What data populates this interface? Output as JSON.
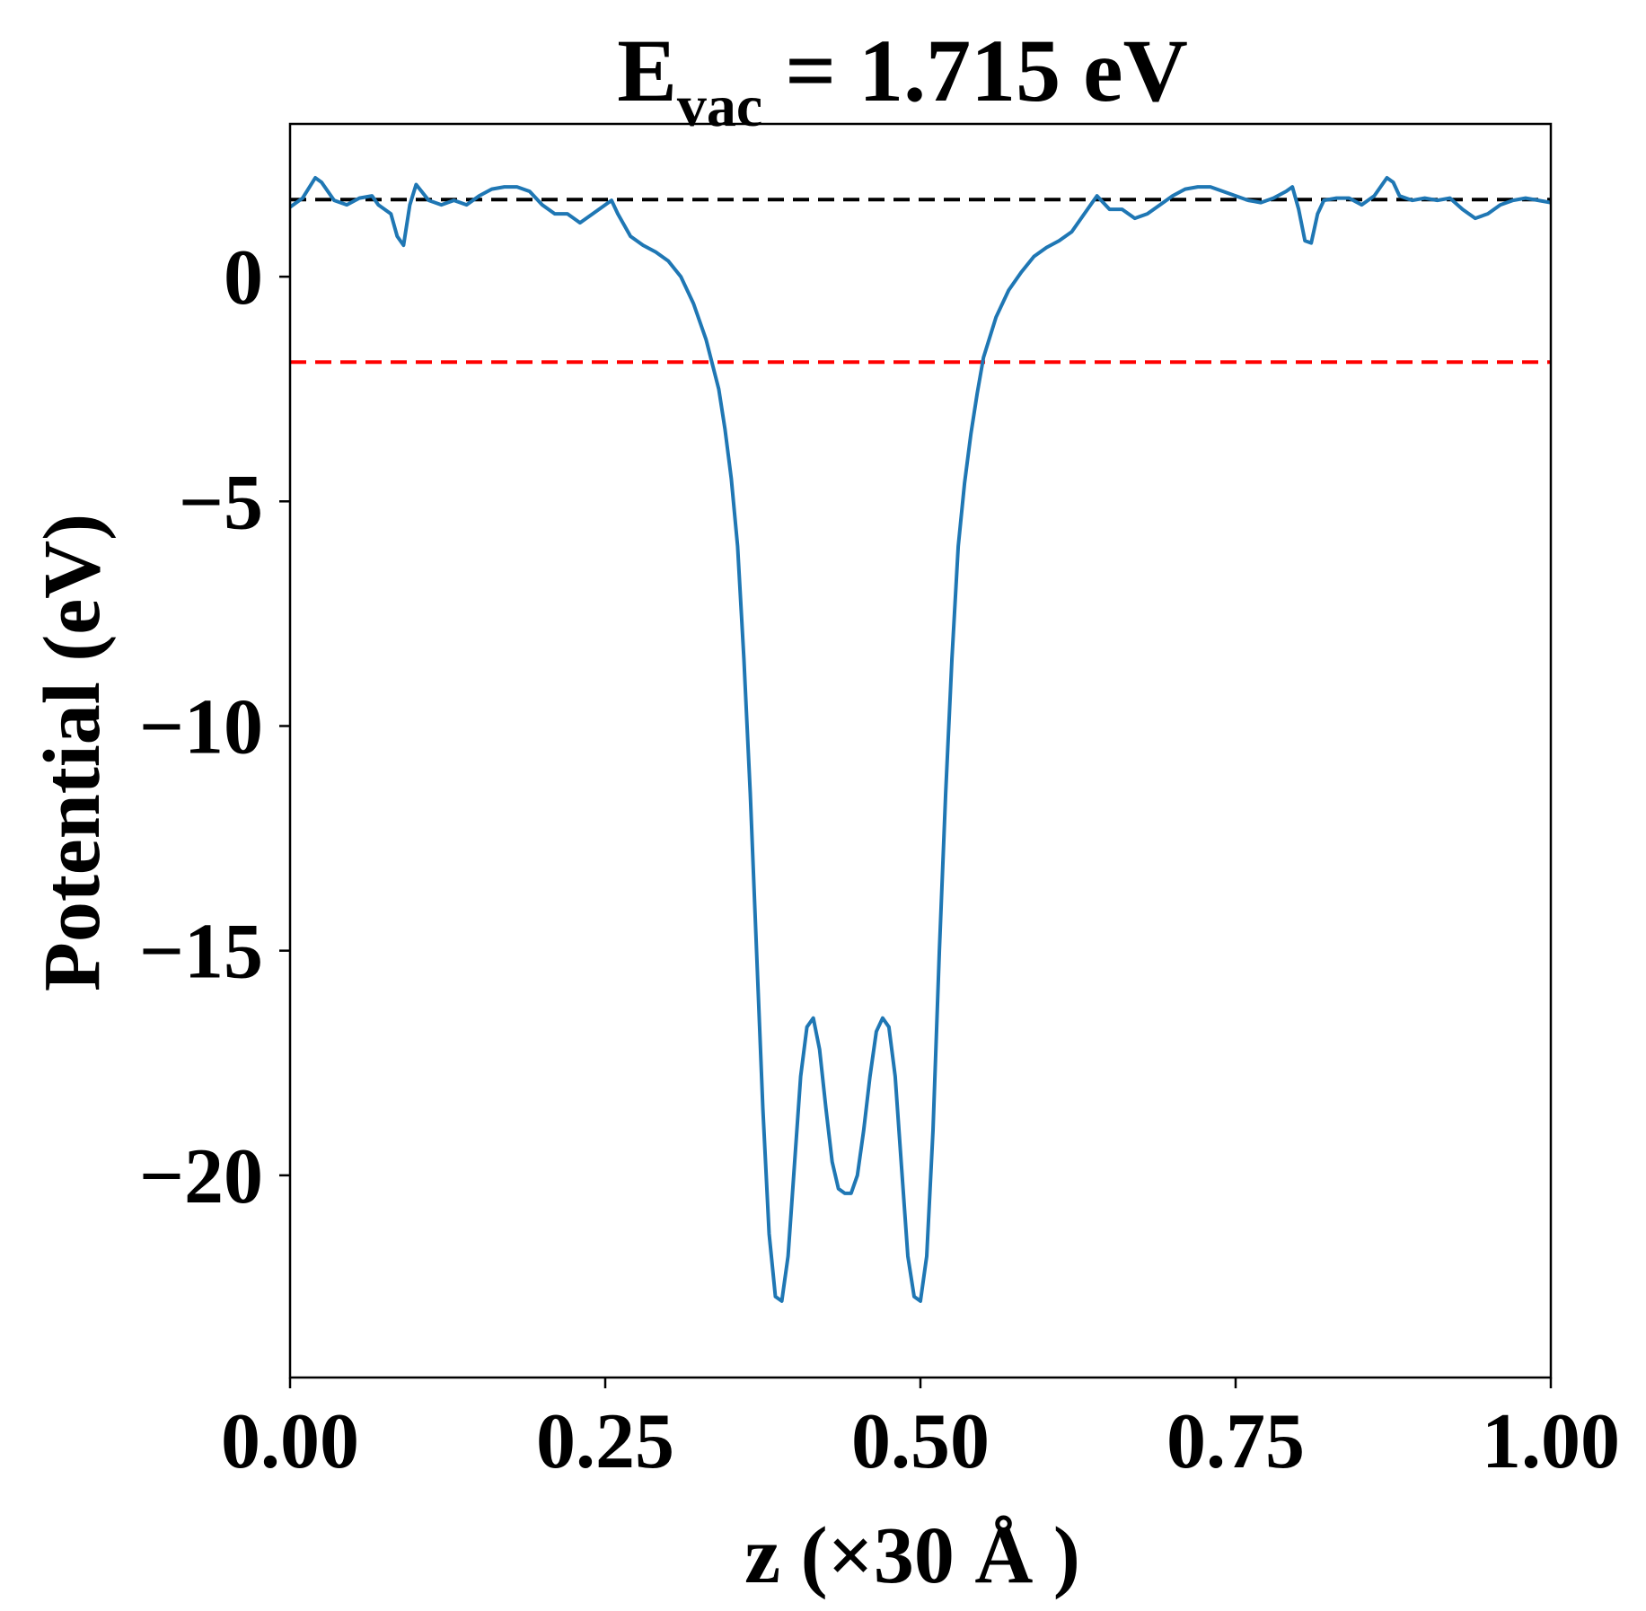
{
  "chart_data": {
    "type": "line",
    "title": {
      "main": "E",
      "sub": "vac",
      "rest": " = 1.715 eV"
    },
    "xlabel": "z (×30 Å )",
    "ylabel": "Potential (eV)",
    "xlim": [
      0.0,
      1.0
    ],
    "ylim": [
      -24.5,
      3.4
    ],
    "xticks": [
      "0.00",
      "0.25",
      "0.50",
      "0.75",
      "1.00"
    ],
    "yticks": [
      "0",
      "−5",
      "−10",
      "−15",
      "−20"
    ],
    "grid": false,
    "reference_lines": [
      {
        "y": 1.715,
        "color": "#000000",
        "style": "dashed"
      },
      {
        "y": -1.9,
        "color": "#ff0000",
        "style": "dashed"
      }
    ],
    "series": [
      {
        "color": "#1f77b4",
        "points": [
          [
            0.0,
            1.55
          ],
          [
            0.01,
            1.75
          ],
          [
            0.02,
            2.2
          ],
          [
            0.025,
            2.1
          ],
          [
            0.03,
            1.9
          ],
          [
            0.035,
            1.7
          ],
          [
            0.045,
            1.6
          ],
          [
            0.055,
            1.75
          ],
          [
            0.065,
            1.8
          ],
          [
            0.07,
            1.6
          ],
          [
            0.075,
            1.5
          ],
          [
            0.08,
            1.4
          ],
          [
            0.085,
            0.9
          ],
          [
            0.09,
            0.7
          ],
          [
            0.095,
            1.6
          ],
          [
            0.1,
            2.05
          ],
          [
            0.11,
            1.7
          ],
          [
            0.12,
            1.6
          ],
          [
            0.13,
            1.7
          ],
          [
            0.14,
            1.6
          ],
          [
            0.15,
            1.8
          ],
          [
            0.16,
            1.95
          ],
          [
            0.17,
            2.0
          ],
          [
            0.18,
            2.0
          ],
          [
            0.19,
            1.9
          ],
          [
            0.2,
            1.6
          ],
          [
            0.21,
            1.4
          ],
          [
            0.22,
            1.4
          ],
          [
            0.23,
            1.2
          ],
          [
            0.24,
            1.4
          ],
          [
            0.25,
            1.6
          ],
          [
            0.255,
            1.7
          ],
          [
            0.26,
            1.4
          ],
          [
            0.27,
            0.9
          ],
          [
            0.28,
            0.7
          ],
          [
            0.29,
            0.55
          ],
          [
            0.3,
            0.35
          ],
          [
            0.31,
            0.0
          ],
          [
            0.32,
            -0.6
          ],
          [
            0.33,
            -1.4
          ],
          [
            0.34,
            -2.5
          ],
          [
            0.345,
            -3.4
          ],
          [
            0.35,
            -4.5
          ],
          [
            0.355,
            -6.0
          ],
          [
            0.36,
            -8.5
          ],
          [
            0.365,
            -11.5
          ],
          [
            0.37,
            -15.0
          ],
          [
            0.375,
            -18.5
          ],
          [
            0.38,
            -21.3
          ],
          [
            0.385,
            -22.7
          ],
          [
            0.39,
            -22.8
          ],
          [
            0.395,
            -21.8
          ],
          [
            0.4,
            -19.8
          ],
          [
            0.405,
            -17.8
          ],
          [
            0.41,
            -16.7
          ],
          [
            0.415,
            -16.5
          ],
          [
            0.42,
            -17.2
          ],
          [
            0.425,
            -18.5
          ],
          [
            0.43,
            -19.7
          ],
          [
            0.435,
            -20.3
          ],
          [
            0.44,
            -20.4
          ],
          [
            0.445,
            -20.4
          ],
          [
            0.45,
            -20.0
          ],
          [
            0.455,
            -19.0
          ],
          [
            0.46,
            -17.8
          ],
          [
            0.465,
            -16.8
          ],
          [
            0.47,
            -16.5
          ],
          [
            0.475,
            -16.7
          ],
          [
            0.48,
            -17.8
          ],
          [
            0.485,
            -19.8
          ],
          [
            0.49,
            -21.8
          ],
          [
            0.495,
            -22.7
          ],
          [
            0.5,
            -22.8
          ],
          [
            0.505,
            -21.8
          ],
          [
            0.51,
            -19.0
          ],
          [
            0.515,
            -15.0
          ],
          [
            0.52,
            -11.5
          ],
          [
            0.525,
            -8.5
          ],
          [
            0.53,
            -6.0
          ],
          [
            0.535,
            -4.6
          ],
          [
            0.54,
            -3.5
          ],
          [
            0.545,
            -2.6
          ],
          [
            0.55,
            -1.8
          ],
          [
            0.56,
            -0.9
          ],
          [
            0.57,
            -0.3
          ],
          [
            0.58,
            0.1
          ],
          [
            0.59,
            0.45
          ],
          [
            0.6,
            0.65
          ],
          [
            0.61,
            0.8
          ],
          [
            0.62,
            1.0
          ],
          [
            0.63,
            1.4
          ],
          [
            0.64,
            1.8
          ],
          [
            0.645,
            1.65
          ],
          [
            0.65,
            1.5
          ],
          [
            0.66,
            1.5
          ],
          [
            0.67,
            1.3
          ],
          [
            0.68,
            1.4
          ],
          [
            0.69,
            1.6
          ],
          [
            0.7,
            1.8
          ],
          [
            0.71,
            1.95
          ],
          [
            0.72,
            2.0
          ],
          [
            0.73,
            2.0
          ],
          [
            0.74,
            1.9
          ],
          [
            0.75,
            1.8
          ],
          [
            0.76,
            1.7
          ],
          [
            0.77,
            1.65
          ],
          [
            0.78,
            1.75
          ],
          [
            0.79,
            1.9
          ],
          [
            0.795,
            2.0
          ],
          [
            0.8,
            1.5
          ],
          [
            0.805,
            0.8
          ],
          [
            0.81,
            0.75
          ],
          [
            0.815,
            1.4
          ],
          [
            0.82,
            1.7
          ],
          [
            0.83,
            1.75
          ],
          [
            0.84,
            1.75
          ],
          [
            0.85,
            1.6
          ],
          [
            0.86,
            1.8
          ],
          [
            0.87,
            2.2
          ],
          [
            0.875,
            2.1
          ],
          [
            0.88,
            1.8
          ],
          [
            0.89,
            1.7
          ],
          [
            0.9,
            1.75
          ],
          [
            0.91,
            1.7
          ],
          [
            0.92,
            1.75
          ],
          [
            0.93,
            1.5
          ],
          [
            0.94,
            1.3
          ],
          [
            0.95,
            1.4
          ],
          [
            0.96,
            1.6
          ],
          [
            0.97,
            1.7
          ],
          [
            0.98,
            1.75
          ],
          [
            0.99,
            1.7
          ],
          [
            1.0,
            1.65
          ]
        ]
      }
    ]
  }
}
